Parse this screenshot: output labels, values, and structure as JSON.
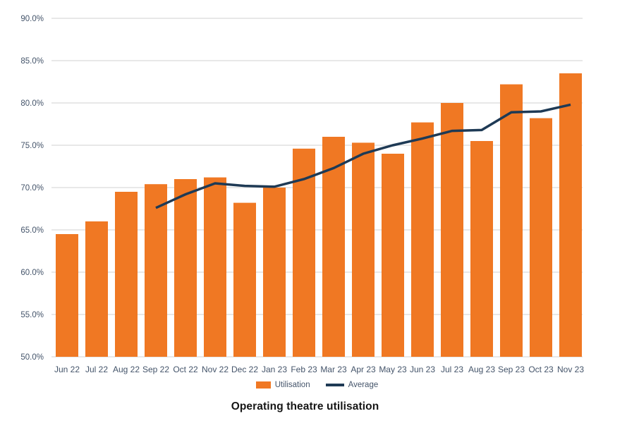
{
  "chart_data": {
    "type": "bar",
    "title": "Operating theatre utilisation",
    "categories": [
      "Jun 22",
      "Jul 22",
      "Aug 22",
      "Sep 22",
      "Oct 22",
      "Nov 22",
      "Dec 22",
      "Jan 23",
      "Feb 23",
      "Mar 23",
      "Apr 23",
      "May 23",
      "Jun 23",
      "Jul 23",
      "Aug 23",
      "Sep 23",
      "Oct 23",
      "Nov 23"
    ],
    "series": [
      {
        "name": "Utilisation",
        "type": "bar",
        "color": "#F07823",
        "values": [
          64.5,
          66.0,
          69.5,
          70.4,
          71.0,
          71.2,
          68.2,
          70.0,
          74.6,
          76.0,
          75.3,
          74.0,
          77.7,
          80.0,
          75.5,
          82.2,
          78.2,
          83.5
        ]
      },
      {
        "name": "Average",
        "type": "line",
        "color": "#1E3A55",
        "values": [
          null,
          null,
          null,
          67.6,
          69.2,
          70.5,
          70.2,
          70.1,
          71.0,
          72.3,
          74.0,
          75.0,
          75.8,
          76.7,
          76.8,
          78.9,
          79.0,
          79.8
        ]
      }
    ],
    "y_axis": {
      "min": 50,
      "max": 90,
      "step": 5,
      "tick_format": "0.0%",
      "tick_labels": [
        "50.0%",
        "55.0%",
        "60.0%",
        "65.0%",
        "70.0%",
        "75.0%",
        "80.0%",
        "85.0%",
        "90.0%"
      ]
    },
    "xlabel": "",
    "ylabel": "",
    "grid": "horizontal",
    "legend_position": "bottom"
  },
  "colors": {
    "bar_orange": "#F07823",
    "line_navy": "#1E3A55",
    "axis_text": "#44546A",
    "grid": "#E8E8E8",
    "title_text": "#161616"
  }
}
